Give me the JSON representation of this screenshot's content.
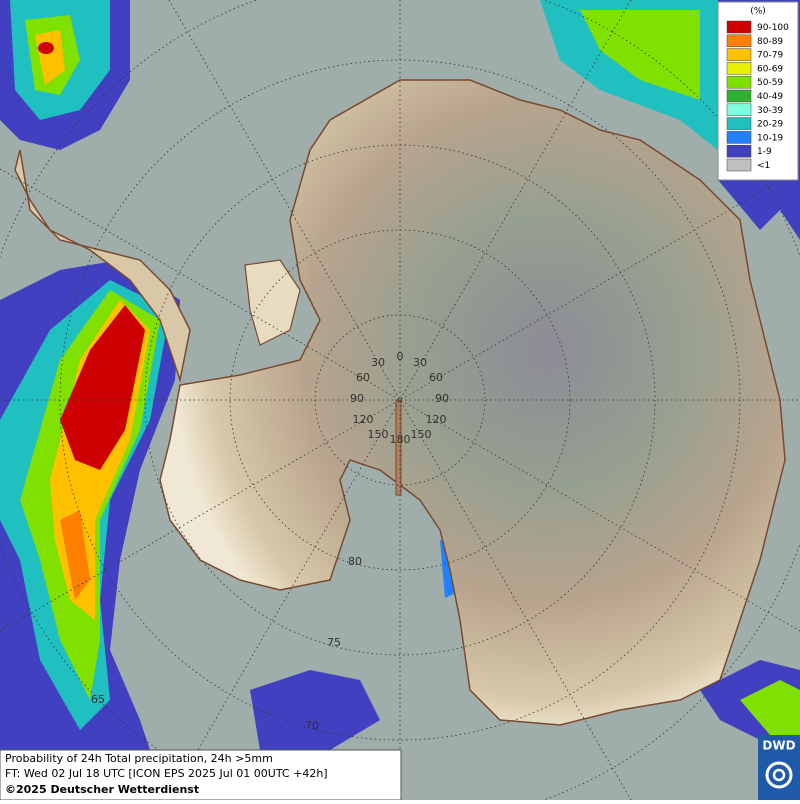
{
  "legend": {
    "title": "(%)",
    "items": [
      {
        "label": "90-100",
        "color": "#cc0000"
      },
      {
        "label": "80-89",
        "color": "#ff7f00"
      },
      {
        "label": "70-79",
        "color": "#ffc000"
      },
      {
        "label": "60-69",
        "color": "#e6f000"
      },
      {
        "label": "50-59",
        "color": "#80e000"
      },
      {
        "label": "40-49",
        "color": "#30b030"
      },
      {
        "label": "30-39",
        "color": "#80ffe0"
      },
      {
        "label": "20-29",
        "color": "#20c0c0"
      },
      {
        "label": "10-19",
        "color": "#2080ff"
      },
      {
        "label": "1-9",
        "color": "#4040c0"
      },
      {
        "label": "<1",
        "color": "#c0c0c0"
      }
    ]
  },
  "map": {
    "longitude_labels_right": [
      "0",
      "30",
      "60",
      "90",
      "120",
      "150",
      "180"
    ],
    "longitude_labels_left": [
      "30",
      "60",
      "90",
      "120",
      "150"
    ],
    "latitude_labels": [
      "80",
      "75",
      "70",
      "65"
    ]
  },
  "footer": {
    "line1": "Probability of 24h Total precipitation, 24h >5mm",
    "line2": "FT: Wed 02 Jul 18 UTC [ICON EPS 2025 Jul 01 00UTC +42h]",
    "line3": "©2025 Deutscher Wetterdienst"
  },
  "logo": "DWD"
}
